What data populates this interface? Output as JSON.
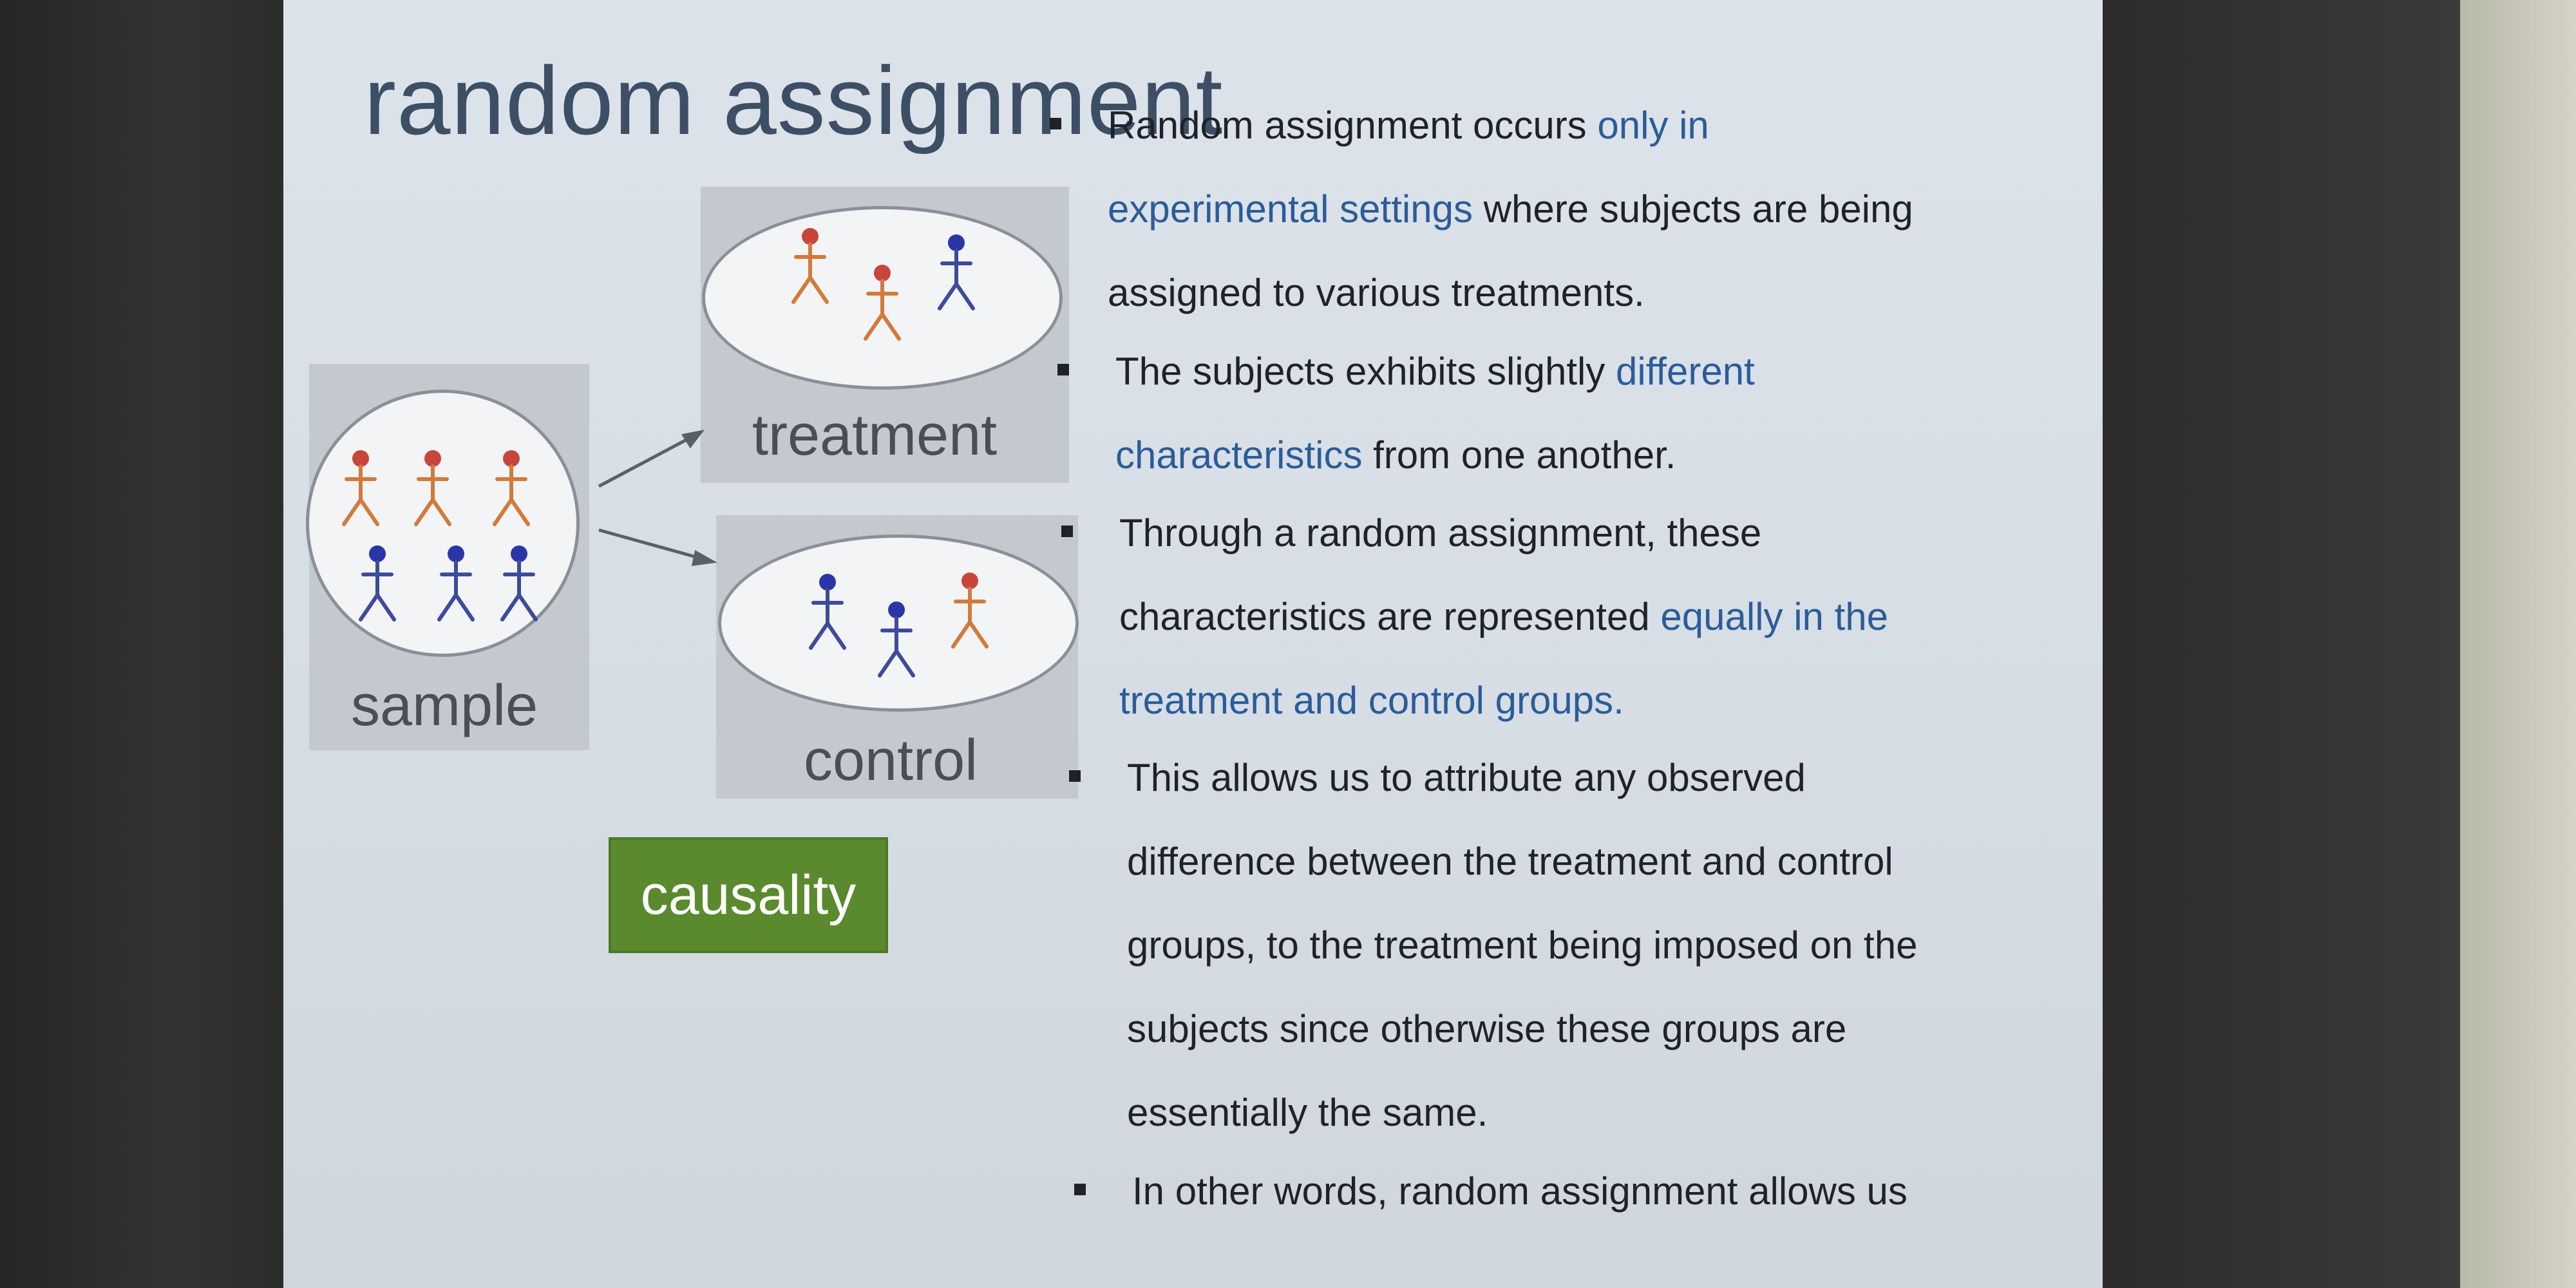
{
  "slide": {
    "title": "random assignment",
    "diagram": {
      "sample_label": "sample",
      "treatment_label": "treatment",
      "control_label": "control",
      "causality_label": "causality",
      "colors": {
        "orange_figure": "#d27a3a",
        "orange_head": "#c8453a",
        "blue_figure": "#3e4a9a",
        "blue_head": "#2a36a8",
        "panel": "#c3c9cf",
        "causality_bg": "#5b8a2e"
      }
    },
    "bullets": [
      {
        "lines": [
          [
            {
              "t": "Random assignment occurs "
            },
            {
              "t": "only in",
              "hl": true
            }
          ],
          [
            {
              "t": "experimental settings",
              "hl": true
            },
            {
              "t": " where subjects are being"
            }
          ],
          [
            {
              "t": "assigned to various treatments."
            }
          ]
        ]
      },
      {
        "lines": [
          [
            {
              "t": "The subjects exhibits slightly "
            },
            {
              "t": "different",
              "hl": true
            }
          ],
          [
            {
              "t": "characteristics",
              "hl": true
            },
            {
              "t": " from one another."
            }
          ]
        ]
      },
      {
        "lines": [
          [
            {
              "t": "Through a random assignment,  these"
            }
          ],
          [
            {
              "t": "characteristics are represented "
            },
            {
              "t": "equally in the",
              "hl": true
            }
          ],
          [
            {
              "t": "treatment and control groups.",
              "hl": true
            }
          ]
        ]
      },
      {
        "lines": [
          [
            {
              "t": "This allows us to attribute any observed"
            }
          ],
          [
            {
              "t": "difference between the treatment and control"
            }
          ],
          [
            {
              "t": "groups, to the treatment being imposed on the"
            }
          ],
          [
            {
              "t": "subjects since otherwise these groups are"
            }
          ],
          [
            {
              "t": "essentially the same."
            }
          ]
        ]
      },
      {
        "lines": [
          [
            {
              "t": "In other words, random assignment allows us"
            }
          ]
        ]
      }
    ]
  }
}
